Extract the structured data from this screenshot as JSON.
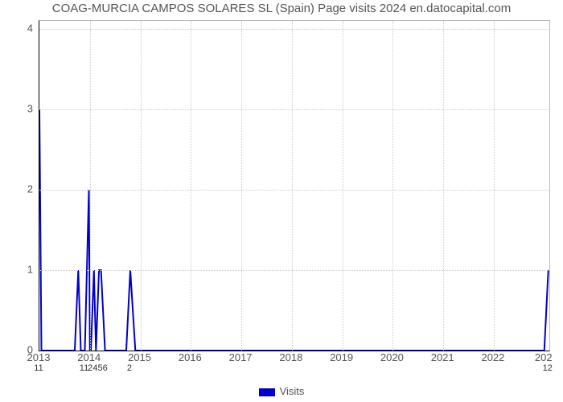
{
  "title": "COAG-MURCIA CAMPOS SOLARES SL (Spain) Page visits 2024 en.datocapital.com",
  "chart": {
    "type": "line",
    "line_color": "#0000cc",
    "line_width": 2,
    "background_color": "#ffffff",
    "grid_color": "#cccccc",
    "axis_color": "#000000",
    "title_fontsize": 15,
    "title_color": "#555555",
    "tick_fontsize": 13,
    "tick_color": "#555555",
    "x_axis": {
      "min": 2013,
      "max": 2023.1,
      "ticks": [
        2013,
        2014,
        2015,
        2016,
        2017,
        2018,
        2019,
        2020,
        2021,
        2022
      ],
      "last_tick_label": "202"
    },
    "y_axis": {
      "min": 0,
      "max": 4.1,
      "ticks": [
        0,
        1,
        2,
        3,
        4
      ]
    },
    "data": [
      {
        "x": 2013.0,
        "y": 3.0,
        "label": "11"
      },
      {
        "x": 2013.04,
        "y": 0.0
      },
      {
        "x": 2013.7,
        "y": 0.0
      },
      {
        "x": 2013.77,
        "y": 1.0
      },
      {
        "x": 2013.82,
        "y": 0.0
      },
      {
        "x": 2013.9,
        "y": 0.0,
        "label": "11"
      },
      {
        "x": 2013.98,
        "y": 2.0
      },
      {
        "x": 2014.0,
        "y": 0.0
      },
      {
        "x": 2014.02,
        "y": 0.0,
        "label": "2"
      },
      {
        "x": 2014.08,
        "y": 1.0
      },
      {
        "x": 2014.12,
        "y": 0.0
      },
      {
        "x": 2014.18,
        "y": 1.0
      },
      {
        "x": 2014.22,
        "y": 1.0,
        "label": "456"
      },
      {
        "x": 2014.3,
        "y": 0.0
      },
      {
        "x": 2014.72,
        "y": 0.0
      },
      {
        "x": 2014.8,
        "y": 1.0,
        "label": "2"
      },
      {
        "x": 2014.9,
        "y": 0.0
      },
      {
        "x": 2023.0,
        "y": 0.0
      },
      {
        "x": 2023.08,
        "y": 1.0,
        "label": "12"
      }
    ],
    "legend": {
      "label": "Visits",
      "swatch_color": "#0000cc"
    }
  }
}
